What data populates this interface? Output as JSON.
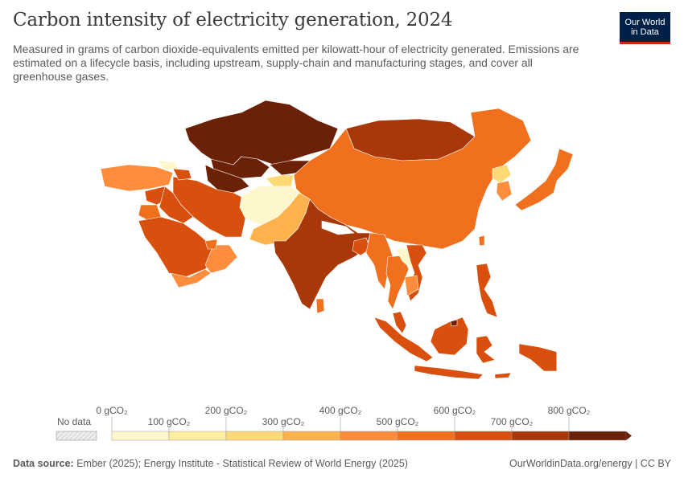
{
  "header": {
    "title": "Carbon intensity of electricity generation, 2024",
    "subtitle": "Measured in grams of carbon dioxide-equivalents emitted per kilowatt-hour of electricity generated. Emissions are estimated on a lifecycle basis, including upstream, supply-chain and manufacturing stages, and cover all greenhouse gases.",
    "logo_line1": "Our World",
    "logo_line2": "in Data"
  },
  "legend": {
    "no_data_label": "No data",
    "tick_labels": [
      "0 gCO₂",
      "100 gCO₂",
      "200 gCO₂",
      "300 gCO₂",
      "400 gCO₂",
      "500 gCO₂",
      "600 gCO₂",
      "700 gCO₂",
      "800 gCO₂"
    ],
    "colors": [
      "#fff7cc",
      "#ffeda0",
      "#fed976",
      "#feb24c",
      "#fd8d3c",
      "#f0701e",
      "#d9500e",
      "#a8380a",
      "#6b2106"
    ],
    "no_data_color": "#eeeeee"
  },
  "map_colors": {
    "land_other": "#ffffff",
    "border": "#cfcfcf"
  },
  "footer": {
    "source_label": "Data source:",
    "source_text": "Ember (2025); Energy Institute - Statistical Review of World Energy (2025)",
    "site": "OurWorldinData.org/energy | CC BY"
  }
}
